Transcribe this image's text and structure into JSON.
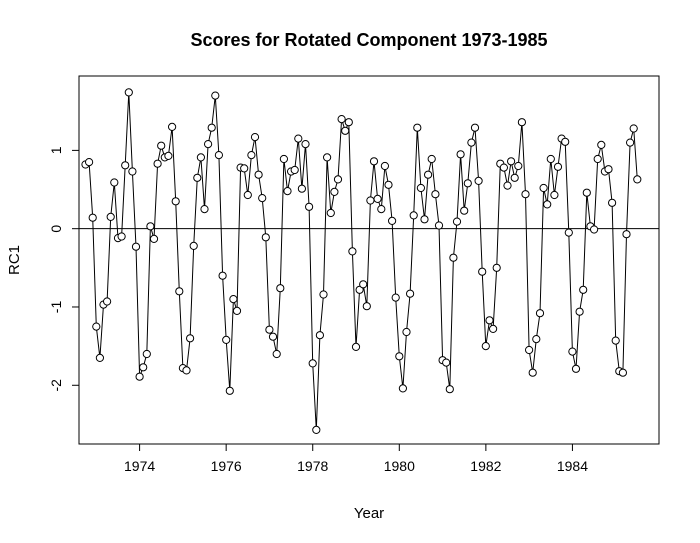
{
  "chart_data": {
    "type": "line",
    "title": "Scores for Rotated Component 1973-1985",
    "xlabel": "Year",
    "ylabel": "RC1",
    "xlim": [
      1972.6,
      1986.0
    ],
    "ylim": [
      -2.75,
      1.95
    ],
    "x_ticks": [
      1974,
      1976,
      1978,
      1980,
      1982,
      1984
    ],
    "x_tick_labels": [
      "1974",
      "1976",
      "1978",
      "1980",
      "1982",
      "1984"
    ],
    "y_ticks": [
      -2,
      -1,
      0,
      1
    ],
    "y_tick_labels": [
      "-2",
      "-1",
      "0",
      "1"
    ],
    "reference_line": 0,
    "marker": "open-circle",
    "grid": false,
    "x_start": 1972.75,
    "x_step": 0.08333,
    "values": [
      0.82,
      0.85,
      0.14,
      -1.25,
      -1.65,
      -0.97,
      -0.93,
      0.15,
      0.59,
      -0.12,
      -0.1,
      0.81,
      1.74,
      0.73,
      -0.23,
      -1.89,
      -1.77,
      -1.6,
      0.03,
      -0.13,
      0.83,
      1.06,
      0.91,
      0.93,
      1.3,
      0.35,
      -0.8,
      -1.78,
      -1.81,
      -1.4,
      -0.22,
      0.65,
      0.91,
      0.25,
      1.08,
      1.29,
      1.7,
      0.94,
      -0.6,
      -1.42,
      -2.07,
      -0.9,
      -1.05,
      0.78,
      0.77,
      0.43,
      0.94,
      1.17,
      0.69,
      0.39,
      -0.11,
      -1.29,
      -1.38,
      -1.6,
      -0.76,
      0.89,
      0.48,
      0.73,
      0.75,
      1.15,
      0.51,
      1.08,
      0.28,
      -1.72,
      -2.57,
      -1.36,
      -0.84,
      0.91,
      0.2,
      0.47,
      0.63,
      1.4,
      1.25,
      1.36,
      -0.29,
      -1.51,
      -0.78,
      -0.71,
      -0.99,
      0.36,
      0.86,
      0.38,
      0.25,
      0.8,
      0.56,
      0.1,
      -0.88,
      -1.63,
      -2.04,
      -1.32,
      -0.83,
      0.17,
      1.29,
      0.52,
      0.12,
      0.69,
      0.89,
      0.44,
      0.04,
      -1.68,
      -1.71,
      -2.05,
      -0.37,
      0.09,
      0.95,
      0.23,
      0.58,
      1.1,
      1.29,
      0.61,
      -0.55,
      -1.5,
      -1.17,
      -1.28,
      -0.5,
      0.83,
      0.78,
      0.55,
      0.86,
      0.65,
      0.8,
      1.36,
      0.44,
      -1.55,
      -1.84,
      -1.41,
      -1.08,
      0.52,
      0.31,
      0.89,
      0.43,
      0.79,
      1.15,
      1.11,
      -0.05,
      -1.57,
      -1.79,
      -1.06,
      -0.78,
      0.46,
      0.03,
      -0.01,
      0.89,
      1.07,
      0.73,
      0.76,
      0.33,
      -1.43,
      -1.82,
      -1.84,
      -0.07,
      1.1,
      1.28,
      0.63
    ]
  }
}
